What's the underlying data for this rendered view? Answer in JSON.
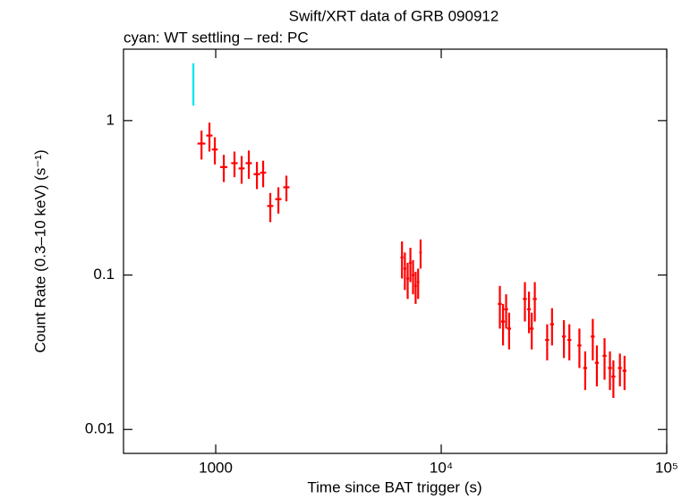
{
  "chart_data": {
    "type": "errorbar",
    "title": "Swift/XRT data of GRB 090912",
    "subtitle": "cyan: WT settling – red: PC",
    "x_label": "Time since BAT trigger (s)",
    "y_label": "Count Rate (0.3–10 keV) (s⁻¹)",
    "xscale": "log",
    "yscale": "log",
    "xlim": [
      390,
      100000
    ],
    "ylim": [
      0.007,
      2.9
    ],
    "xticks": [
      1000,
      {
        "value": 10000,
        "label": "10⁴"
      },
      {
        "value": 100000,
        "label": "10⁵"
      }
    ],
    "yticks": [
      0.01,
      0.1,
      1
    ],
    "series": [
      {
        "color": "#00e5ee",
        "x": [
          796
        ],
        "values": [
          1.8
        ],
        "yerr": [
          0.55
        ],
        "xerr": [
          3
        ]
      },
      {
        "color": "#ff0000",
        "x": [
          865,
          938,
          991,
          1086,
          1211,
          1303,
          1402,
          1523,
          1623,
          1746,
          1896,
          2058,
          6700,
          6900,
          7100,
          7300,
          7500,
          7700,
          7900,
          8100,
          18200,
          18800,
          19400,
          20000,
          23500,
          24500,
          25200,
          26000,
          29500,
          31000,
          35000,
          37000,
          41000,
          43500,
          47000,
          49000,
          53000,
          56000,
          58000,
          62000,
          65000
        ],
        "values": [
          0.71,
          0.8,
          0.65,
          0.5,
          0.53,
          0.49,
          0.53,
          0.45,
          0.46,
          0.28,
          0.31,
          0.37,
          0.13,
          0.11,
          0.095,
          0.12,
          0.1,
          0.085,
          0.09,
          0.14,
          0.065,
          0.05,
          0.06,
          0.045,
          0.07,
          0.06,
          0.045,
          0.07,
          0.038,
          0.048,
          0.04,
          0.038,
          0.035,
          0.025,
          0.04,
          0.027,
          0.03,
          0.025,
          0.022,
          0.025,
          0.024
        ],
        "yerr": [
          0.15,
          0.17,
          0.13,
          0.1,
          0.1,
          0.1,
          0.11,
          0.09,
          0.09,
          0.06,
          0.06,
          0.07,
          0.035,
          0.03,
          0.025,
          0.03,
          0.025,
          0.02,
          0.02,
          0.03,
          0.02,
          0.015,
          0.015,
          0.012,
          0.02,
          0.018,
          0.012,
          0.02,
          0.01,
          0.013,
          0.011,
          0.01,
          0.01,
          0.007,
          0.012,
          0.008,
          0.009,
          0.007,
          0.006,
          0.006,
          0.006
        ],
        "xerr": [
          35,
          30,
          30,
          40,
          40,
          40,
          45,
          50,
          50,
          55,
          60,
          65,
          100,
          100,
          100,
          100,
          100,
          100,
          100,
          100,
          360,
          370,
          380,
          400,
          460,
          480,
          500,
          520,
          600,
          620,
          700,
          740,
          820,
          870,
          940,
          980,
          1060,
          1120,
          1160,
          1240,
          1300
        ]
      }
    ]
  }
}
